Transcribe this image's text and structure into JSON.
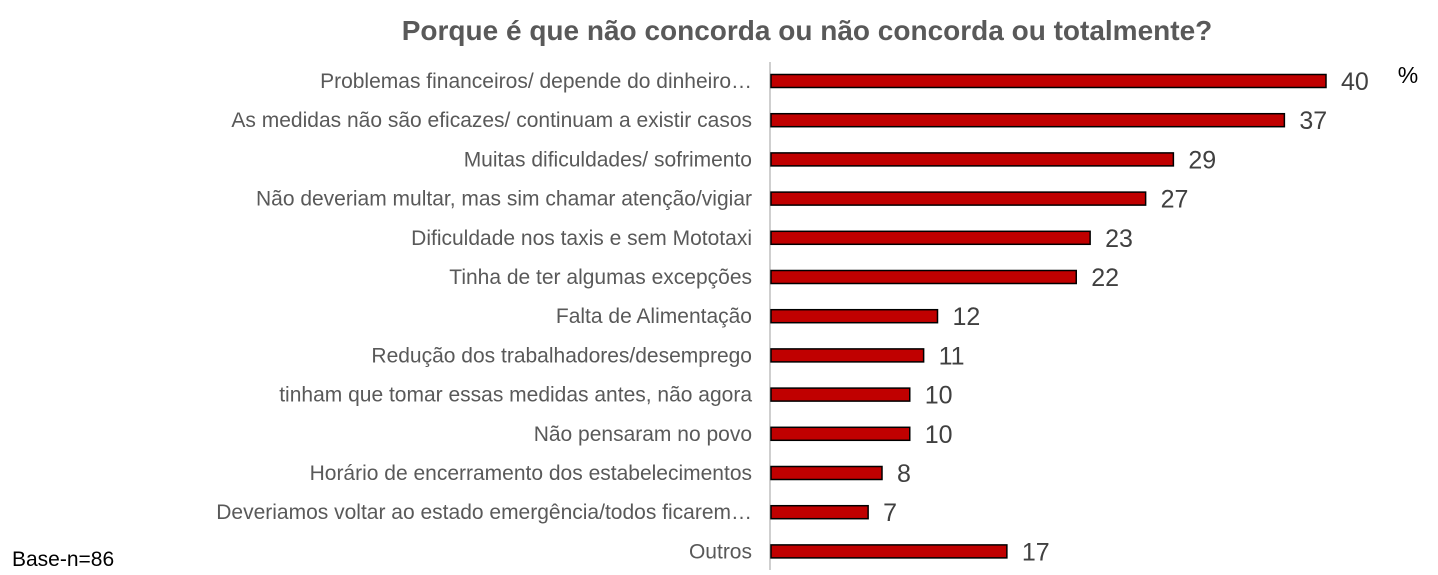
{
  "base_note": "Base-n=86",
  "chart_data": {
    "type": "bar",
    "orientation": "horizontal",
    "title": "Porque é que não concorda ou não concorda ou totalmente?",
    "unit": "%",
    "categories": [
      "Problemas financeiros/ depende do dinheiro…",
      "As medidas não são eficazes/ continuam a existir casos",
      "Muitas dificuldades/ sofrimento",
      "Não deveriam multar, mas sim chamar atenção/vigiar",
      "Dificuldade nos taxis e sem Mototaxi",
      "Tinha de ter algumas excepções",
      "Falta de Alimentação",
      "Redução dos trabalhadores/desemprego",
      "tinham que tomar essas medidas antes, não agora",
      "Não pensaram no povo",
      "Horário de encerramento dos estabelecimentos",
      "Deveriamos voltar ao estado emergência/todos ficarem…",
      "Outros"
    ],
    "values": [
      40,
      37,
      29,
      27,
      23,
      22,
      12,
      11,
      10,
      10,
      8,
      7,
      17
    ],
    "xlim": [
      0,
      40
    ],
    "grid": false,
    "legend": "none",
    "colors": {
      "bar": "#C00000",
      "bar_border": "#000000",
      "axis": "#BFBFBF",
      "category_text": "#595959",
      "value_text": "#404040"
    }
  }
}
